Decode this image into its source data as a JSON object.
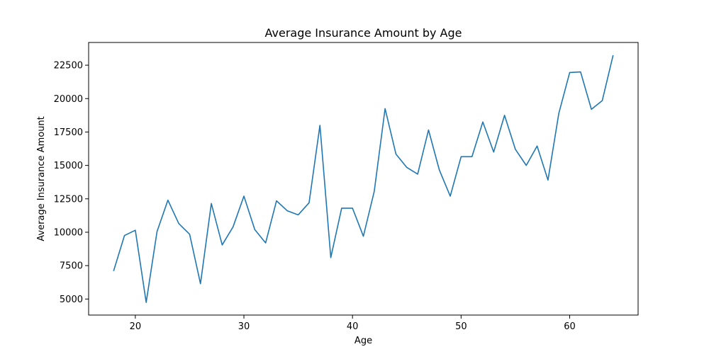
{
  "chart_data": {
    "type": "line",
    "title": "Average Insurance Amount by Age",
    "xlabel": "Age",
    "ylabel": "Average Insurance Amount",
    "xlim": [
      15.7,
      66.3
    ],
    "ylim": [
      3800,
      24200
    ],
    "xticks": [
      20,
      30,
      40,
      50,
      60
    ],
    "yticks": [
      5000,
      7500,
      10000,
      12500,
      15000,
      17500,
      20000,
      22500
    ],
    "grid": false,
    "legend": "none",
    "series": [
      {
        "color": "#1f77b4",
        "x": [
          18,
          19,
          20,
          21,
          22,
          23,
          24,
          25,
          26,
          27,
          28,
          29,
          30,
          31,
          32,
          33,
          34,
          35,
          36,
          37,
          38,
          39,
          40,
          41,
          42,
          43,
          44,
          45,
          46,
          47,
          48,
          49,
          50,
          51,
          52,
          53,
          54,
          55,
          56,
          57,
          58,
          59,
          60,
          61,
          62,
          63,
          64
        ],
        "values": [
          7100,
          9750,
          10150,
          4750,
          10050,
          12400,
          10650,
          9850,
          6150,
          12150,
          9050,
          10400,
          12700,
          10200,
          9200,
          12350,
          11600,
          11300,
          12200,
          18000,
          8100,
          11800,
          11800,
          9700,
          13050,
          19250,
          15850,
          14850,
          14350,
          17650,
          14650,
          12700,
          15650,
          15650,
          18250,
          16000,
          18750,
          16200,
          15000,
          16450,
          13900,
          18900,
          21950,
          22000,
          19200,
          19850,
          23250
        ]
      }
    ]
  }
}
